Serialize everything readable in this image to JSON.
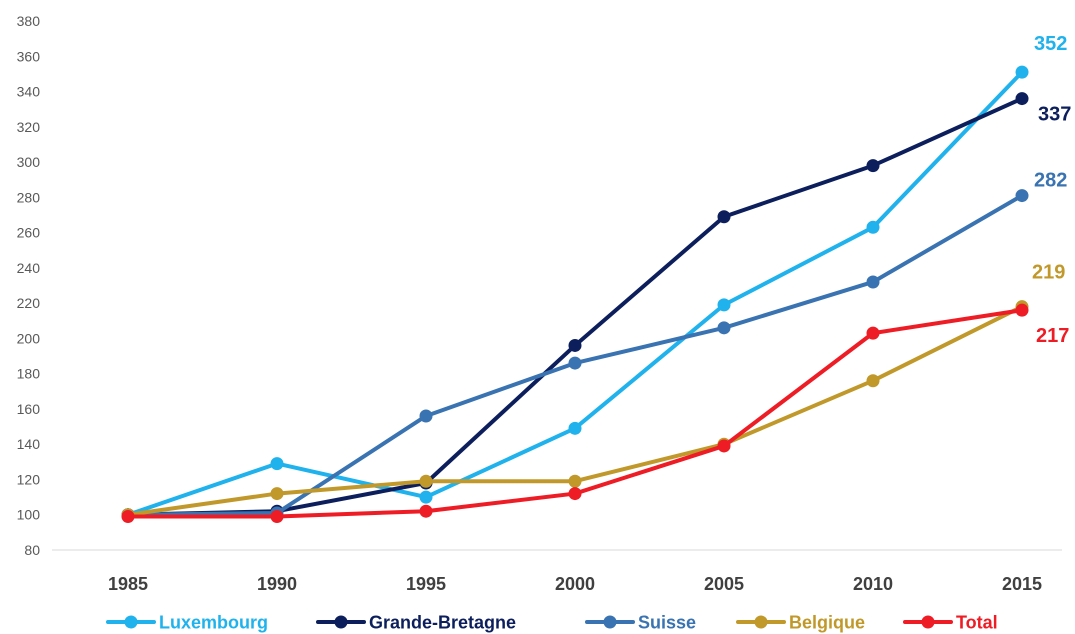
{
  "chart_data": {
    "type": "line",
    "title": "",
    "xlabel": "",
    "ylabel": "",
    "categories": [
      "1985",
      "1990",
      "1995",
      "2000",
      "2005",
      "2010",
      "2015"
    ],
    "ylim": [
      80,
      380
    ],
    "yticks": [
      80,
      100,
      120,
      140,
      160,
      180,
      200,
      220,
      240,
      260,
      280,
      300,
      320,
      340,
      360,
      380
    ],
    "grid": false,
    "legend": "bottom",
    "series": [
      {
        "name": "Luxembourg",
        "color": "#1FB2EC",
        "values": [
          100,
          129,
          110,
          149,
          219,
          263,
          351
        ],
        "end_label": "352"
      },
      {
        "name": "Grande-Bretagne",
        "color": "#0C1F5C",
        "values": [
          100,
          102,
          118,
          196,
          269,
          298,
          336
        ],
        "end_label": "337"
      },
      {
        "name": "Suisse",
        "color": "#3973B1",
        "values": [
          100,
          101,
          156,
          186,
          206,
          232,
          281
        ],
        "end_label": "282"
      },
      {
        "name": "Belgique",
        "color": "#C1982A",
        "values": [
          100,
          112,
          119,
          119,
          140,
          176,
          218
        ],
        "end_label": "219"
      },
      {
        "name": "Total",
        "color": "#EE1C25",
        "values": [
          99,
          99,
          102,
          112,
          139,
          203,
          216
        ],
        "end_label": "217"
      }
    ]
  }
}
